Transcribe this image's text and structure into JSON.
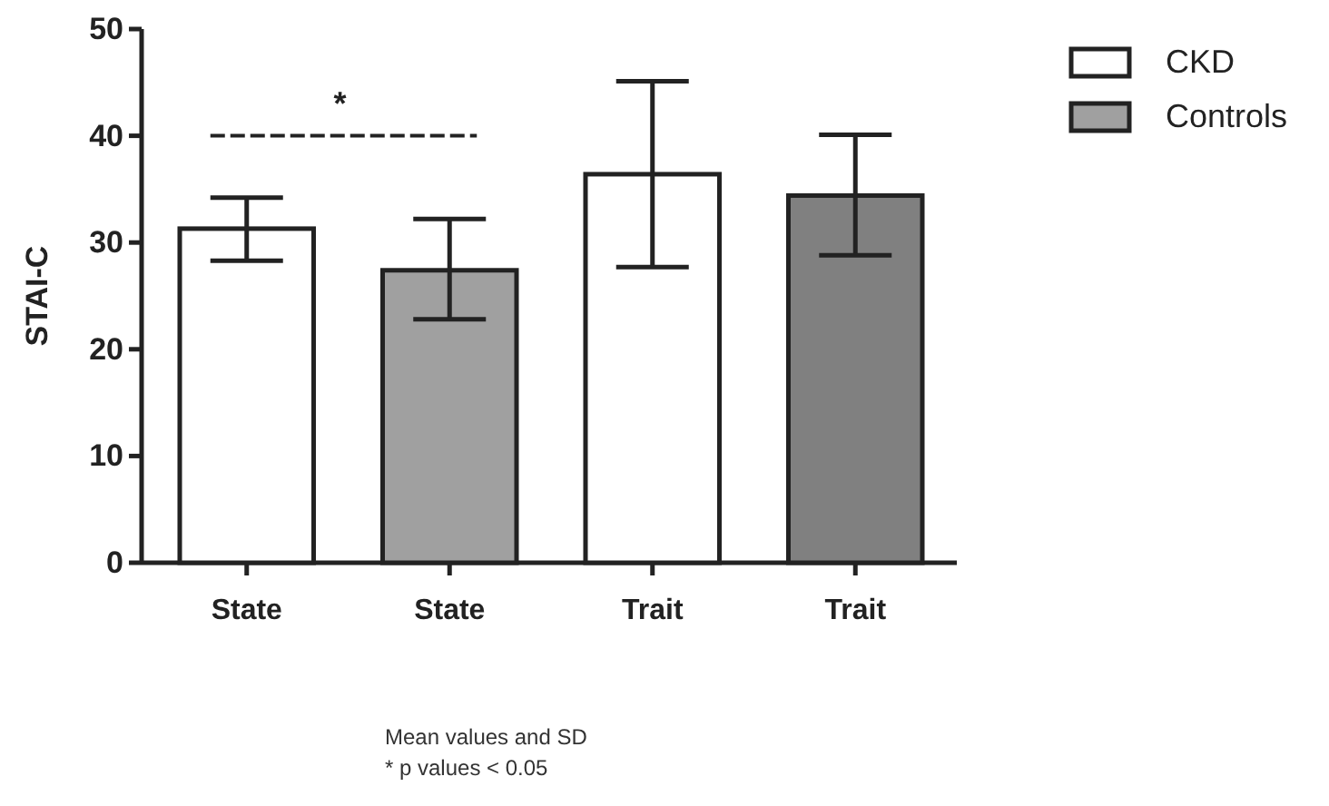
{
  "chart_data": {
    "type": "bar",
    "ylabel": "STAI-C",
    "categories": [
      "State",
      "State",
      "Trait",
      "Trait"
    ],
    "series": [
      {
        "name": "CKD",
        "color": "#ffffff",
        "values": [
          31.3,
          null,
          36.4,
          null
        ],
        "errors": [
          [
            28.3,
            34.2
          ],
          null,
          [
            27.7,
            45.1
          ],
          null
        ]
      },
      {
        "name": "Controls",
        "color": "#a0a0a0",
        "colors": [
          null,
          "#a0a0a0",
          null,
          "#808080"
        ],
        "values": [
          null,
          27.4,
          null,
          34.4
        ],
        "errors": [
          null,
          [
            22.8,
            32.2
          ],
          null,
          [
            28.8,
            40.1
          ]
        ]
      }
    ],
    "ylim": [
      0,
      50
    ],
    "yticks": [
      0,
      10,
      20,
      30,
      40,
      50
    ],
    "grid": false,
    "legend": "top right",
    "annotations": [
      "*",
      "Mean values and SD",
      "* p values < 0.05"
    ]
  }
}
